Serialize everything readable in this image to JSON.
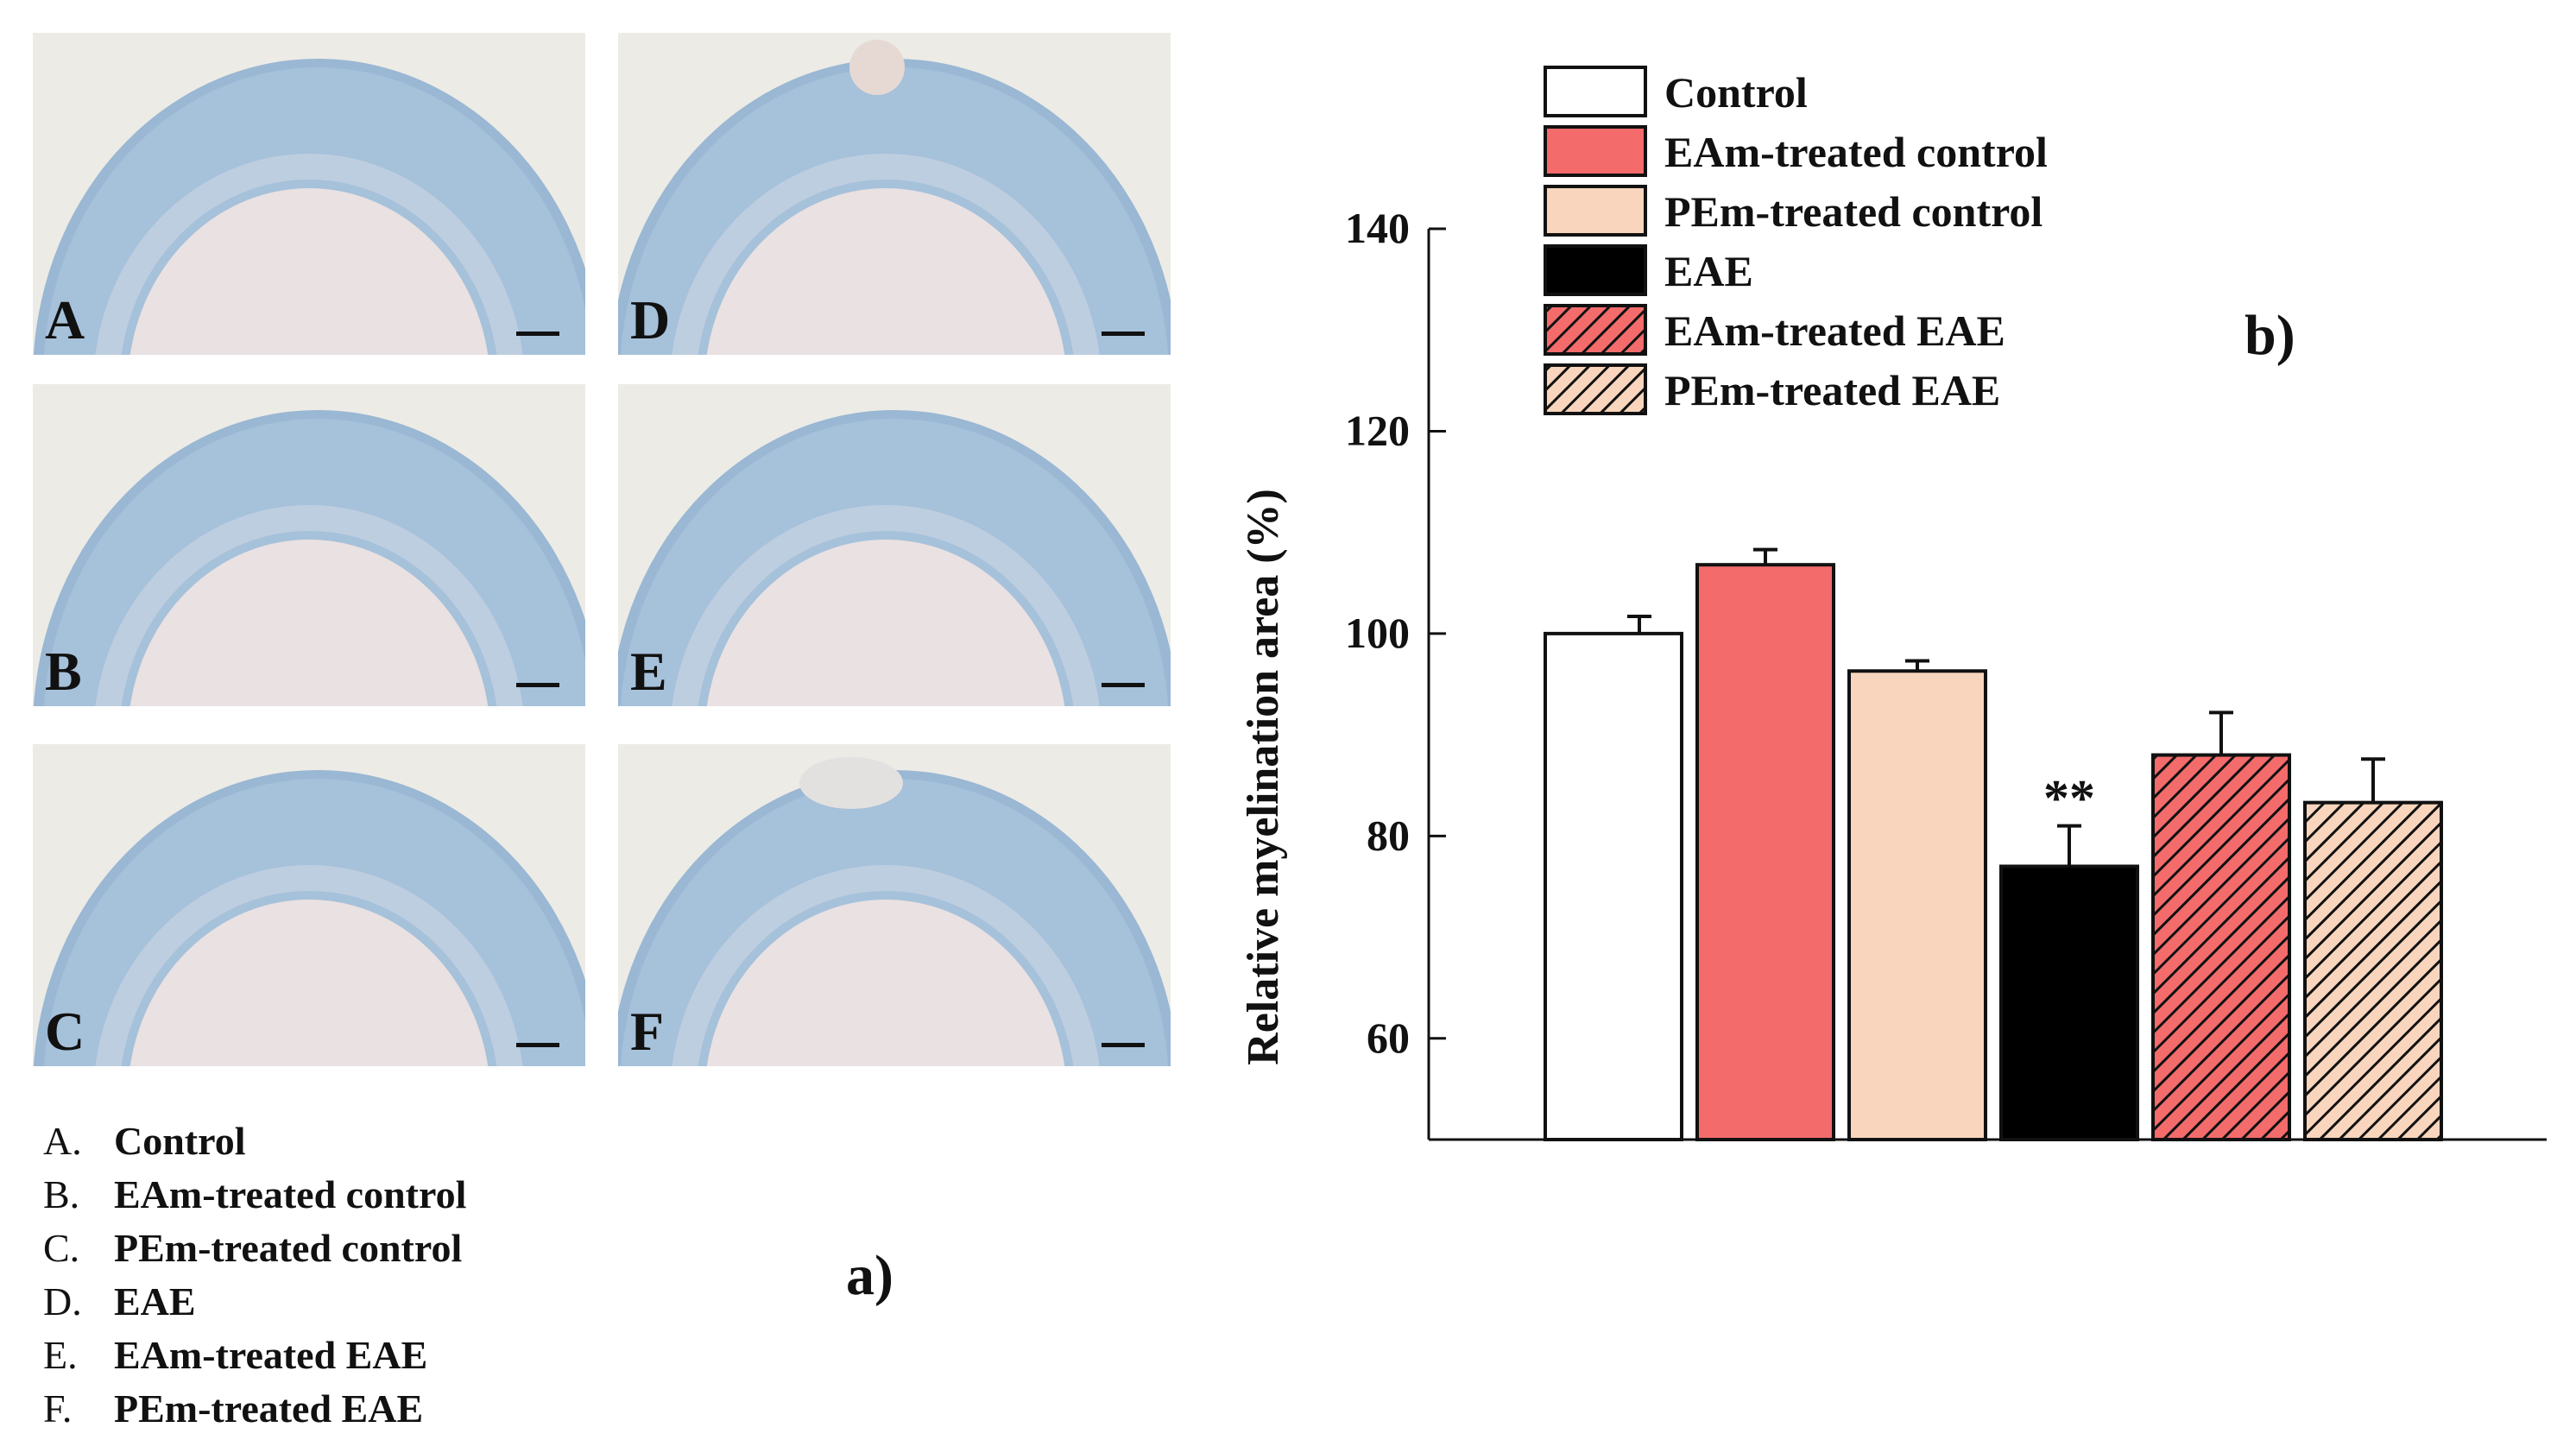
{
  "panel_a": {
    "tag": "a)",
    "micrographs": [
      {
        "letter": "A",
        "col": 0,
        "row": 0
      },
      {
        "letter": "B",
        "col": 0,
        "row": 1
      },
      {
        "letter": "C",
        "col": 0,
        "row": 2
      },
      {
        "letter": "D",
        "col": 1,
        "row": 0
      },
      {
        "letter": "E",
        "col": 1,
        "row": 1
      },
      {
        "letter": "F",
        "col": 1,
        "row": 2
      }
    ],
    "legend": [
      {
        "letter": "A.",
        "label": "Control"
      },
      {
        "letter": "B.",
        "label": "EAm-treated control"
      },
      {
        "letter": "C.",
        "label": "PEm-treated control"
      },
      {
        "letter": "D.",
        "label": "EAE"
      },
      {
        "letter": "E.",
        "label": "EAm-treated EAE"
      },
      {
        "letter": "F.",
        "label": "PEm-treated EAE"
      }
    ]
  },
  "chart_data": {
    "type": "bar",
    "panel_tag": "b)",
    "ylabel": "Relative myelination area (%)",
    "xlabel": "",
    "ylim": [
      50,
      140
    ],
    "yticks": [
      60,
      80,
      100,
      120,
      140
    ],
    "categories": [
      "Control",
      "EAm-treated control",
      "PEm-treated control",
      "EAE",
      "EAm-treated EAE",
      "PEm-treated EAE"
    ],
    "values": [
      100,
      106.8,
      96.3,
      77,
      88,
      83.3
    ],
    "errors": [
      1.7,
      1.5,
      1.0,
      4.0,
      4.2,
      4.3
    ],
    "colors": [
      "#ffffff",
      "#f36b6b",
      "#f8d5bc",
      "#000000",
      "#f36b6b",
      "#f8d5bc"
    ],
    "hatched": [
      false,
      false,
      false,
      false,
      true,
      true
    ],
    "annotations": [
      {
        "category": "EAE",
        "text": "**"
      }
    ],
    "legend_position": "top"
  }
}
